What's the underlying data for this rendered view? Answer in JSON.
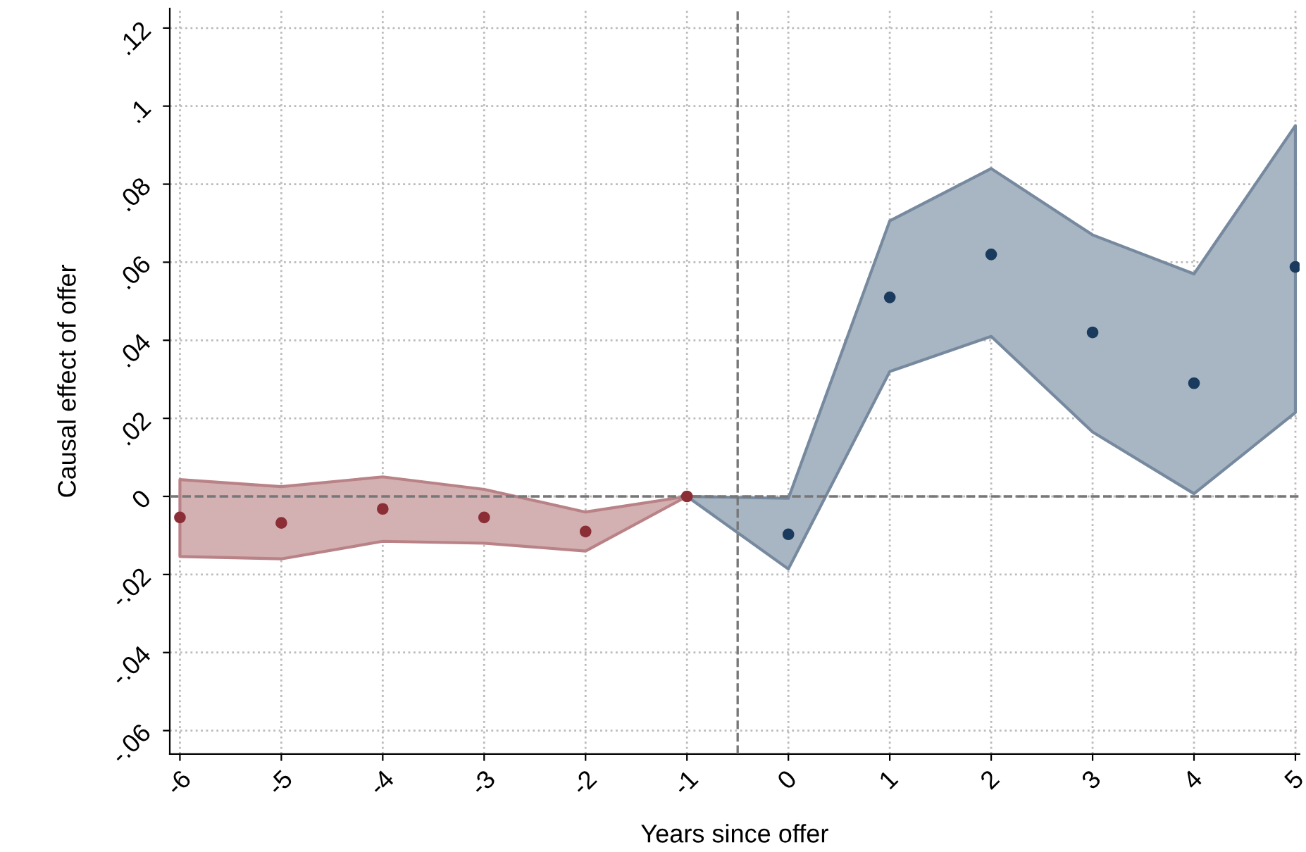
{
  "chart_data": {
    "type": "scatter",
    "xlabel": "Years since offer",
    "ylabel": "Causal effect of offer",
    "series": [
      {
        "color": "#8b2e35",
        "x": [
          -6,
          -5,
          -4,
          -3,
          -2,
          -1
        ],
        "values": [
          -0.0054,
          -0.0068,
          -0.0032,
          -0.0054,
          -0.009,
          0
        ],
        "lower": [
          -0.0154,
          -0.016,
          -0.0115,
          -0.012,
          -0.014,
          0
        ],
        "upper": [
          0.0043,
          0.0025,
          0.005,
          0.0018,
          -0.004,
          0
        ]
      },
      {
        "color": "#1b3b5e",
        "x": [
          -1,
          0,
          1,
          2,
          3,
          4,
          5
        ],
        "values": [
          null,
          -0.0097,
          0.051,
          0.062,
          0.042,
          0.029,
          0.0588
        ],
        "lower": [
          0,
          -0.0186,
          0.032,
          0.041,
          0.0165,
          0.0007,
          0.0215
        ],
        "upper": [
          0,
          -0.0005,
          0.0706,
          0.084,
          0.067,
          0.057,
          0.095
        ]
      }
    ],
    "xlim": [
      -6.1,
      5.04
    ],
    "ylim": [
      -0.066,
      0.125
    ],
    "xticks": [
      -6,
      -5,
      -4,
      -3,
      -2,
      -1,
      0,
      1,
      2,
      3,
      4,
      5
    ],
    "yticks": [
      {
        "value": -0.06,
        "label": "-.06"
      },
      {
        "value": -0.04,
        "label": "-.04"
      },
      {
        "value": -0.02,
        "label": "-.02"
      },
      0,
      {
        "value": 0.02,
        "label": ".02"
      },
      {
        "value": 0.04,
        "label": ".04"
      },
      {
        "value": 0.06,
        "label": ".06"
      },
      {
        "value": 0.08,
        "label": ".08"
      },
      {
        "value": 0.1,
        "label": ".1"
      },
      {
        "value": 0.12,
        "label": ".12"
      }
    ],
    "ref_lines": [
      {
        "axis": "y",
        "value": 0,
        "color": "#777777",
        "line_style": "dashed"
      },
      {
        "axis": "x",
        "value": -0.5,
        "color": "#777777",
        "line_style": "dashed"
      }
    ],
    "grid": true,
    "marker": "circle",
    "legend": false
  }
}
